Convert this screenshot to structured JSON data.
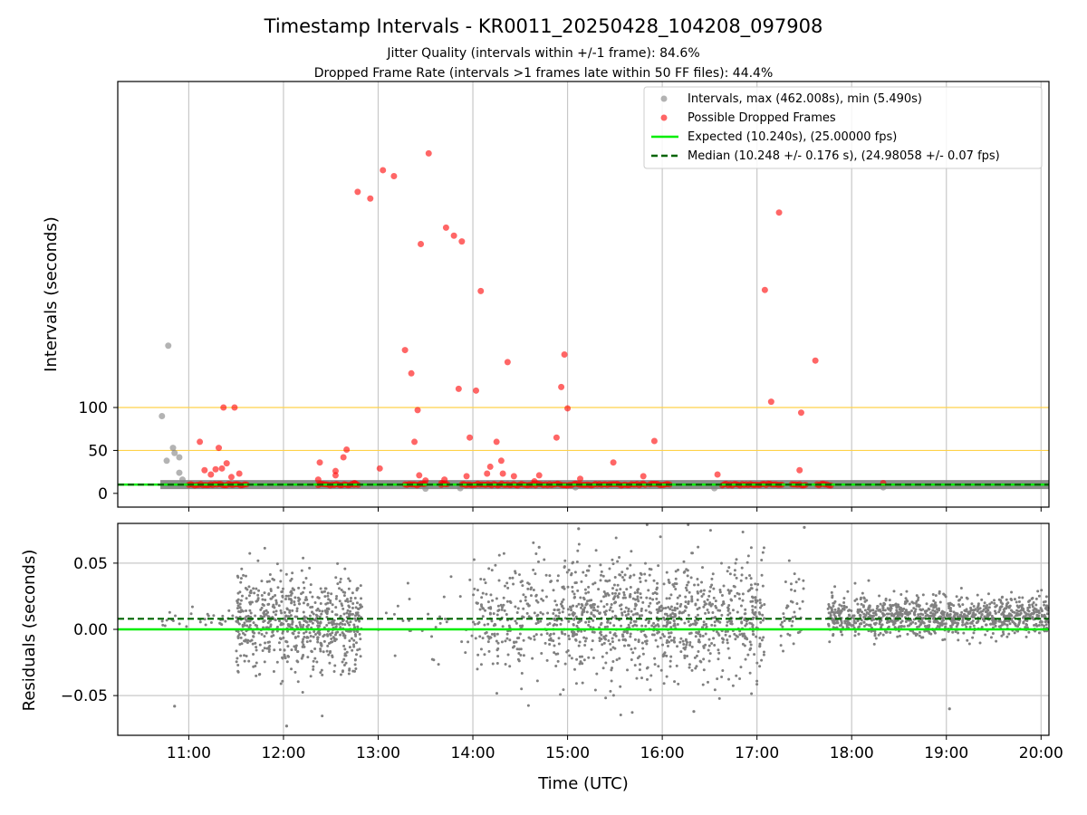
{
  "chart_data": [
    {
      "type": "scatter",
      "title": "Timestamp Intervals - KR0011_20250428_104208_097908",
      "subtitle_lines": [
        "Jitter Quality (intervals within +/-1 frame): 84.6%",
        "Dropped Frame Rate (intervals >1 frames late within 50 FF files): 44.4%"
      ],
      "xlabel": "",
      "ylabel": "Intervals (seconds)",
      "x_range": [
        "10:15",
        "20:05"
      ],
      "x_ticks": [
        "11:00",
        "12:00",
        "13:00",
        "14:00",
        "15:00",
        "16:00",
        "17:00",
        "18:00",
        "19:00",
        "20:00"
      ],
      "y_ticks": [
        0,
        50,
        100
      ],
      "ylim": [
        -16,
        480
      ],
      "y_scale": "symlog",
      "grid": "vertical",
      "reference_lines": [
        {
          "y": 50,
          "color": "#ffd24a"
        },
        {
          "y": 100,
          "color": "#ffd24a"
        }
      ],
      "legend_position": "top-right",
      "legend": [
        {
          "label": "Intervals, max (462.008s), min (5.490s)",
          "marker": "dot",
          "color": "#808080"
        },
        {
          "label": "Possible Dropped Frames",
          "marker": "dot",
          "color": "#ff0000"
        },
        {
          "label": "Expected (10.240s), (25.00000 fps)",
          "marker": "line",
          "color": "#00ee00"
        },
        {
          "label": "Median (10.248 +/- 0.176 s), (24.98058 +/- 0.07 fps)",
          "marker": "dashed-line",
          "color": "#006400"
        }
      ],
      "series": [
        {
          "name": "Intervals, max (462.008s), min (5.490s)",
          "color": "#808080",
          "baseline_value": 10.24,
          "baseline_from": "10:42",
          "points": [
            {
              "x": "10:43",
              "y": 90
            },
            {
              "x": "10:47",
              "y": 137
            },
            {
              "x": "10:46",
              "y": 38
            },
            {
              "x": "10:50",
              "y": 53
            },
            {
              "x": "10:51",
              "y": 47
            },
            {
              "x": "10:54",
              "y": 42
            },
            {
              "x": "10:54",
              "y": 24
            },
            {
              "x": "10:56",
              "y": 16
            },
            {
              "x": "13:30",
              "y": 5.5
            },
            {
              "x": "13:52",
              "y": 6
            },
            {
              "x": "15:05",
              "y": 7
            },
            {
              "x": "16:33",
              "y": 6
            },
            {
              "x": "18:20",
              "y": 7
            }
          ]
        },
        {
          "name": "Possible Dropped Frames",
          "color": "#ff0000",
          "points": [
            {
              "x": "11:07",
              "y": 60
            },
            {
              "x": "11:10",
              "y": 27
            },
            {
              "x": "11:14",
              "y": 22
            },
            {
              "x": "11:17",
              "y": 28
            },
            {
              "x": "11:19",
              "y": 53
            },
            {
              "x": "11:21",
              "y": 29
            },
            {
              "x": "11:22",
              "y": 100
            },
            {
              "x": "11:24",
              "y": 35
            },
            {
              "x": "11:27",
              "y": 19
            },
            {
              "x": "11:29",
              "y": 100
            },
            {
              "x": "11:32",
              "y": 23
            },
            {
              "x": "12:23",
              "y": 36
            },
            {
              "x": "12:22",
              "y": 16
            },
            {
              "x": "12:33",
              "y": 26
            },
            {
              "x": "12:33",
              "y": 21
            },
            {
              "x": "12:38",
              "y": 42
            },
            {
              "x": "12:40",
              "y": 51
            },
            {
              "x": "12:45",
              "y": 12
            },
            {
              "x": "12:47",
              "y": 300
            },
            {
              "x": "12:55",
              "y": 290
            },
            {
              "x": "13:01",
              "y": 29
            },
            {
              "x": "13:03",
              "y": 335
            },
            {
              "x": "13:10",
              "y": 325
            },
            {
              "x": "13:17",
              "y": 134
            },
            {
              "x": "13:21",
              "y": 119
            },
            {
              "x": "13:23",
              "y": 60
            },
            {
              "x": "13:25",
              "y": 97
            },
            {
              "x": "13:26",
              "y": 21
            },
            {
              "x": "13:27",
              "y": 230
            },
            {
              "x": "13:30",
              "y": 15
            },
            {
              "x": "13:32",
              "y": 365
            },
            {
              "x": "13:40",
              "y": 12
            },
            {
              "x": "13:42",
              "y": 16
            },
            {
              "x": "13:43",
              "y": 250
            },
            {
              "x": "13:48",
              "y": 240
            },
            {
              "x": "13:51",
              "y": 110
            },
            {
              "x": "13:53",
              "y": 233
            },
            {
              "x": "13:56",
              "y": 20
            },
            {
              "x": "13:58",
              "y": 65
            },
            {
              "x": "14:02",
              "y": 109
            },
            {
              "x": "14:05",
              "y": 181
            },
            {
              "x": "14:09",
              "y": 23
            },
            {
              "x": "14:11",
              "y": 31
            },
            {
              "x": "14:15",
              "y": 60
            },
            {
              "x": "14:18",
              "y": 38
            },
            {
              "x": "14:19",
              "y": 23
            },
            {
              "x": "14:22",
              "y": 126
            },
            {
              "x": "14:26",
              "y": 20
            },
            {
              "x": "14:39",
              "y": 14
            },
            {
              "x": "14:42",
              "y": 21
            },
            {
              "x": "14:53",
              "y": 65
            },
            {
              "x": "14:56",
              "y": 111
            },
            {
              "x": "14:58",
              "y": 131
            },
            {
              "x": "15:00",
              "y": 99
            },
            {
              "x": "15:08",
              "y": 17
            },
            {
              "x": "15:29",
              "y": 36
            },
            {
              "x": "15:48",
              "y": 20
            },
            {
              "x": "15:55",
              "y": 61
            },
            {
              "x": "16:35",
              "y": 22
            },
            {
              "x": "17:05",
              "y": 182
            },
            {
              "x": "17:09",
              "y": 103
            },
            {
              "x": "17:14",
              "y": 270
            },
            {
              "x": "17:27",
              "y": 27
            },
            {
              "x": "17:28",
              "y": 94
            },
            {
              "x": "17:37",
              "y": 127
            },
            {
              "x": "18:20",
              "y": 12
            }
          ],
          "dense_runs_at_value": 10.24,
          "dense_runs": [
            [
              "11:00",
              "11:37"
            ],
            [
              "12:22",
              "12:48"
            ],
            [
              "13:17",
              "13:30"
            ],
            [
              "13:40",
              "13:45"
            ],
            [
              "13:53",
              "15:50"
            ],
            [
              "15:52",
              "16:05"
            ],
            [
              "16:38",
              "17:17"
            ],
            [
              "17:22",
              "17:32"
            ],
            [
              "17:38",
              "17:48"
            ]
          ]
        },
        {
          "name": "Expected (10.240s), (25.00000 fps)",
          "type": "hline",
          "value": 10.24,
          "color": "#00ee00"
        },
        {
          "name": "Median (10.248 +/- 0.176 s), (24.98058 +/- 0.07 fps)",
          "type": "hline",
          "value": 10.248,
          "color": "#006400",
          "dash": true
        }
      ]
    },
    {
      "type": "scatter",
      "xlabel": "Time (UTC)",
      "ylabel": "Residuals (seconds)",
      "x_range": [
        "10:15",
        "20:05"
      ],
      "x_ticks": [
        "11:00",
        "12:00",
        "13:00",
        "14:00",
        "15:00",
        "16:00",
        "17:00",
        "18:00",
        "19:00",
        "20:00"
      ],
      "y_ticks": [
        "0.05",
        "0.00",
        "−0.05"
      ],
      "y_tick_values": [
        0.05,
        0.0,
        -0.05
      ],
      "ylim": [
        -0.08,
        0.08
      ],
      "grid": "both",
      "series": [
        {
          "name": "Residuals",
          "color": "#808080",
          "density_regions": [
            {
              "x": [
                "10:42",
                "11:30"
              ],
              "y_center": 0.007,
              "spread": 0.008,
              "count": 30
            },
            {
              "x": [
                "11:30",
                "12:50"
              ],
              "y_center": 0.005,
              "spread": 0.035,
              "count": 700
            },
            {
              "x": [
                "13:00",
                "13:40"
              ],
              "y_center": 0.0,
              "spread": 0.04,
              "count": 20
            },
            {
              "x": [
                "13:40",
                "14:00"
              ],
              "y_center": 0.01,
              "spread": 0.035,
              "count": 12
            },
            {
              "x": [
                "14:00",
                "15:00"
              ],
              "y_center": 0.01,
              "spread": 0.04,
              "count": 280
            },
            {
              "x": [
                "15:00",
                "17:05"
              ],
              "y_center": 0.008,
              "spread": 0.045,
              "count": 900
            },
            {
              "x": [
                "17:15",
                "17:30"
              ],
              "y_center": 0.01,
              "spread": 0.03,
              "count": 40
            },
            {
              "x": [
                "17:45",
                "20:05"
              ],
              "y_center": 0.01,
              "spread": 0.015,
              "count": 1000
            }
          ],
          "notable_points": [
            {
              "x": "10:51",
              "y": -0.058
            },
            {
              "x": "12:02",
              "y": -0.073
            },
            {
              "x": "14:42",
              "y": 0.062
            },
            {
              "x": "15:07",
              "y": 0.076
            },
            {
              "x": "17:30",
              "y": 0.077
            },
            {
              "x": "19:02",
              "y": -0.06
            },
            {
              "x": "16:20",
              "y": -0.062
            }
          ]
        },
        {
          "name": "Expected",
          "type": "hline",
          "value": 0.0,
          "color": "#00ee00"
        },
        {
          "name": "Median",
          "type": "hline",
          "value": 0.008,
          "color": "#006400",
          "dash": true
        }
      ]
    }
  ]
}
